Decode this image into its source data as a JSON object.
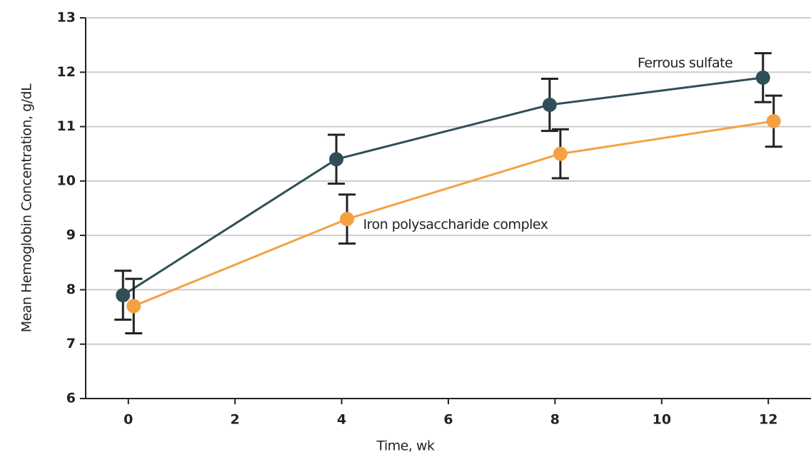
{
  "chart_data": {
    "type": "line",
    "x_label": "Time, wk",
    "y_label": "Mean Hemoglobin Concentration, g/dL",
    "x": [
      0,
      4,
      8,
      12
    ],
    "series": [
      {
        "name": "Ferrous sulfate",
        "color": "#2f4f57",
        "values": [
          7.9,
          10.4,
          11.4,
          11.9
        ],
        "errors": [
          0.45,
          0.45,
          0.48,
          0.45
        ]
      },
      {
        "name": "Iron polysaccharide complex",
        "color": "#f5a142",
        "values": [
          7.7,
          9.3,
          10.5,
          11.1
        ],
        "errors": [
          0.5,
          0.45,
          0.45,
          0.47
        ]
      }
    ],
    "xlim": [
      -0.8,
      12.8
    ],
    "xticks": [
      0,
      2,
      4,
      6,
      8,
      10,
      12
    ],
    "ylim": [
      6,
      13
    ],
    "yticks": [
      6,
      7,
      8,
      9,
      10,
      11,
      12,
      13
    ],
    "grid": true
  }
}
